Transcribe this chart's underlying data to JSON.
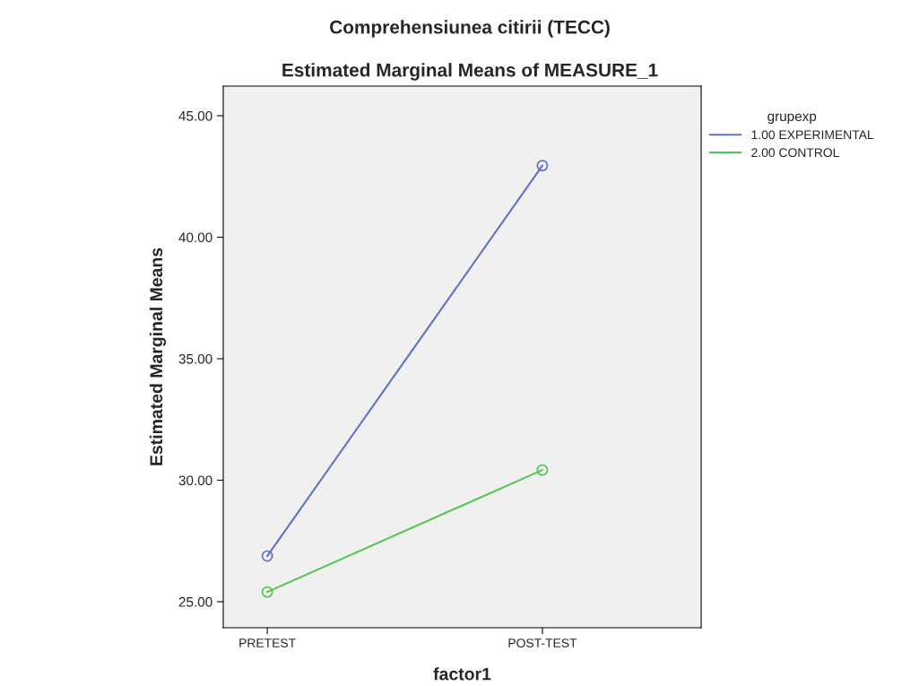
{
  "chart_data": {
    "type": "line",
    "title": "Comprehensiunea citirii (TECC)",
    "subtitle": "Estimated Marginal Means of MEASURE_1",
    "xlabel": "factor1",
    "ylabel": "Estimated Marginal Means",
    "legend_title": "grupexp",
    "categories": [
      "PRETEST",
      "POST-TEST"
    ],
    "series": [
      {
        "name": "1.00 EXPERIMENTAL",
        "color": "#6372c0",
        "values": [
          26.88,
          42.95
        ]
      },
      {
        "name": "2.00 CONTROL",
        "color": "#4fc64f",
        "values": [
          25.4,
          30.42
        ]
      }
    ],
    "ylim": [
      23.93,
      46.22
    ],
    "yticks": [
      {
        "value": 25,
        "label": "25.00"
      },
      {
        "value": 30,
        "label": "30.00"
      },
      {
        "value": 35,
        "label": "35.00"
      },
      {
        "value": 40,
        "label": "40.00"
      },
      {
        "value": 45,
        "label": "45.00"
      }
    ],
    "marker": "circle",
    "line_style": "solid",
    "grid": false,
    "legend": "top right"
  }
}
